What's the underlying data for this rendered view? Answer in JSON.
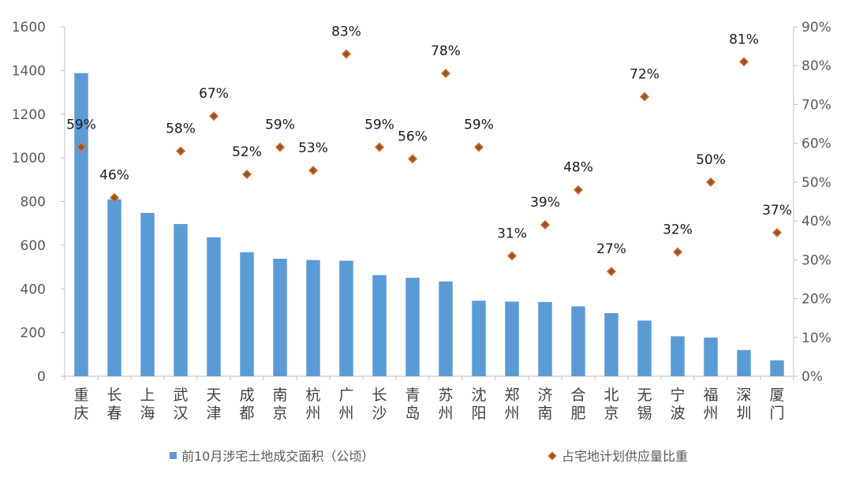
{
  "chart_data": {
    "type": "bar",
    "categories": [
      "重庆",
      "长春",
      "上海",
      "武汉",
      "天津",
      "成都",
      "南京",
      "杭州",
      "广州",
      "长沙",
      "青岛",
      "苏州",
      "沈阳",
      "郑州",
      "济南",
      "合肥",
      "北京",
      "无锡",
      "宁波",
      "福州",
      "深圳",
      "厦门"
    ],
    "series": [
      {
        "name": "前10月涉宅土地成交面积（公顷）",
        "type": "bar",
        "axis": "left",
        "color": "#5B9BD5",
        "values": [
          1388,
          810,
          748,
          697,
          636,
          568,
          538,
          532,
          529,
          463,
          451,
          434,
          346,
          342,
          340,
          320,
          289,
          255,
          183,
          177,
          120,
          73
        ]
      },
      {
        "name": "占宅地计划供应量比重",
        "type": "scatter",
        "axis": "right",
        "color": "#C0504D",
        "values": [
          0.59,
          0.46,
          null,
          0.58,
          0.67,
          0.52,
          0.59,
          0.53,
          0.83,
          0.59,
          0.56,
          0.78,
          0.59,
          0.31,
          0.39,
          0.48,
          0.27,
          0.72,
          0.32,
          0.5,
          0.81,
          0.37
        ],
        "labels": [
          "59%",
          "46%",
          "",
          "58%",
          "67%",
          "52%",
          "59%",
          "53%",
          "83%",
          "59%",
          "56%",
          "78%",
          "59%",
          "31%",
          "39%",
          "48%",
          "27%",
          "72%",
          "32%",
          "50%",
          "81%",
          "37%"
        ]
      }
    ],
    "y_left": {
      "ticks": [
        "0",
        "200",
        "400",
        "600",
        "800",
        "1000",
        "1200",
        "1400",
        "1600"
      ],
      "ylim": [
        0,
        1600
      ]
    },
    "y_right": {
      "ticks": [
        "0%",
        "10%",
        "20%",
        "30%",
        "40%",
        "50%",
        "60%",
        "70%",
        "80%",
        "90%"
      ],
      "ylim": [
        0,
        0.9
      ]
    },
    "legend": {
      "position": "bottom"
    },
    "grid": false
  }
}
